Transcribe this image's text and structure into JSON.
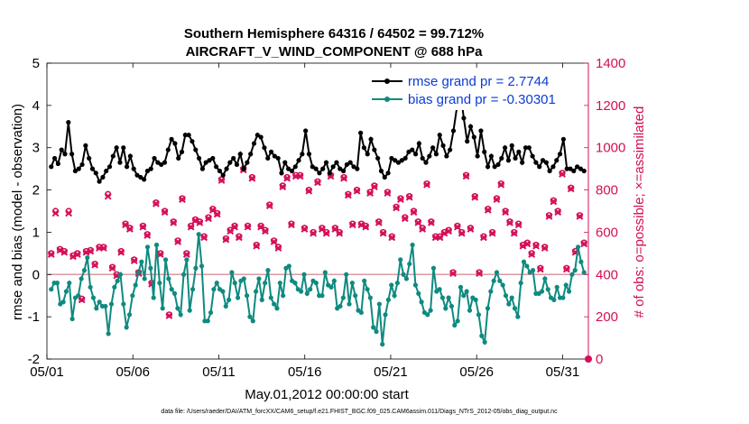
{
  "chart_data": {
    "type": "line",
    "title": "Southern Hemisphere 64316 / 64502 = 99.712%",
    "subtitle": "AIRCRAFT_V_WIND_COMPONENT @ 688 hPa",
    "xlabel": "May.01,2012 00:00:00 start",
    "ylabel_left": "rmse and bias (model - observation)",
    "ylabel_right": "# of obs: o=possible; ×=assimilated",
    "footer": "data file: /Users/raeder/DAI/ATM_forcXX/CAM6_setup/f.e21.FHIST_BGC.f09_025.CAM6assim.011/Diags_NTrS_2012-05/obs_diag_output.nc",
    "xlim": [
      0,
      31.5
    ],
    "ylim_left": [
      -2,
      5
    ],
    "ylim_right": [
      0,
      1400
    ],
    "x_ticks": [
      0,
      5,
      10,
      15,
      20,
      25,
      30
    ],
    "x_tick_labels": [
      "05/01",
      "05/06",
      "05/11",
      "05/16",
      "05/21",
      "05/26",
      "05/31"
    ],
    "y_ticks_left": [
      "-2",
      "-1",
      "0",
      "1",
      "2",
      "3",
      "4",
      "5"
    ],
    "y_ticks_right": [
      "0",
      "200",
      "400",
      "600",
      "800",
      "1000",
      "1200",
      "1400"
    ],
    "series": [
      {
        "name": "rmse grand pr = 2.7744",
        "axis": "left",
        "color": "#000000",
        "marker": "filled-circle",
        "values": [
          2.55,
          2.75,
          2.62,
          2.95,
          2.85,
          3.6,
          2.85,
          2.45,
          2.5,
          2.6,
          3.05,
          2.75,
          2.5,
          2.4,
          2.2,
          2.3,
          2.45,
          2.55,
          2.8,
          3.0,
          2.65,
          3.0,
          2.55,
          2.8,
          2.5,
          2.35,
          2.3,
          2.25,
          2.45,
          2.5,
          2.75,
          2.65,
          2.6,
          2.65,
          2.95,
          3.2,
          3.1,
          2.75,
          2.9,
          3.3,
          3.3,
          3.15,
          2.95,
          2.75,
          2.5,
          2.65,
          2.7,
          2.75,
          2.55,
          2.45,
          2.35,
          2.5,
          2.65,
          2.75,
          2.6,
          2.85,
          2.5,
          2.65,
          2.85,
          3.1,
          3.3,
          3.25,
          3.0,
          2.75,
          2.9,
          2.8,
          2.75,
          2.4,
          2.65,
          2.5,
          2.45,
          2.55,
          2.7,
          2.85,
          3.4,
          2.85,
          2.55,
          2.5,
          2.4,
          2.5,
          2.65,
          2.4,
          2.55,
          2.65,
          2.5,
          2.45,
          2.6,
          2.65,
          2.55,
          2.5,
          3.35,
          3.0,
          2.85,
          3.2,
          2.95,
          2.75,
          2.45,
          2.3,
          2.4,
          2.75,
          2.7,
          2.65,
          2.7,
          2.75,
          2.9,
          2.95,
          2.85,
          3.1,
          2.75,
          2.65,
          2.8,
          3.0,
          2.85,
          3.3,
          3.05,
          2.8,
          2.95,
          3.4,
          3.95,
          4.35,
          3.7,
          3.15,
          3.5,
          3.25,
          2.8,
          3.4,
          2.9,
          2.55,
          2.8,
          2.55,
          2.6,
          2.75,
          3.0,
          2.7,
          3.05,
          2.75,
          2.9,
          2.65,
          3.0,
          3.0,
          2.8,
          2.65,
          2.55,
          2.7,
          2.65,
          2.45,
          2.55,
          2.7,
          2.85,
          3.2,
          2.5,
          2.5,
          2.45,
          2.55,
          2.5,
          2.45
        ]
      },
      {
        "name": "bias grand pr = -0.30301",
        "axis": "left",
        "color": "#0f8a80",
        "marker": "filled-circle",
        "values": [
          -0.35,
          -0.2,
          -0.2,
          -0.7,
          -0.65,
          -0.4,
          -0.2,
          -1.05,
          -0.55,
          -0.5,
          -0.1,
          0.1,
          0.4,
          -0.3,
          -0.55,
          -0.8,
          -0.65,
          -0.75,
          -0.75,
          -1.4,
          -0.7,
          -0.3,
          -0.15,
          0.0,
          -0.7,
          -1.25,
          -0.95,
          -0.5,
          -0.25,
          0.05,
          0.3,
          -0.1,
          0.65,
          0.15,
          -0.55,
          0.7,
          -0.2,
          -0.8,
          0.35,
          -0.1,
          -0.35,
          -0.45,
          -0.8,
          -0.95,
          0.0,
          0.35,
          -0.85,
          -0.35,
          0.15,
          0.95,
          0.2,
          -1.1,
          -1.1,
          -0.9,
          -0.35,
          -0.2,
          -0.35,
          -0.4,
          -0.75,
          -0.6,
          0.05,
          -0.2,
          -0.55,
          -0.15,
          -0.1,
          -0.5,
          -1.0,
          -1.1,
          -0.4,
          -0.1,
          -0.6,
          -0.2,
          0.1,
          -0.55,
          -0.7,
          -0.8,
          -0.2,
          -0.5,
          0.15,
          0.2,
          -0.15,
          -0.2,
          -0.35,
          -0.4,
          0.0,
          -0.45,
          -0.35,
          -0.15,
          -0.2,
          -0.5,
          -0.5,
          0.05,
          -0.25,
          -0.3,
          -0.15,
          -0.8,
          -0.75,
          -0.55,
          0.0,
          -0.7,
          -0.2,
          -0.5,
          -0.85,
          -0.9,
          -0.15,
          -0.35,
          -0.55,
          -1.25,
          -1.35,
          -0.7,
          -1.65,
          -0.95,
          -0.6,
          -0.25,
          -0.5,
          -0.2,
          0.35,
          0.0,
          -0.1,
          0.25,
          0.7,
          -0.25,
          -0.45,
          -0.65,
          -0.9,
          -0.95,
          -0.85,
          0.15,
          -0.4,
          -0.35,
          -0.55,
          -0.8,
          -0.55,
          -0.75,
          -1.2,
          -1.1,
          -0.3,
          -0.5,
          -0.4,
          -0.85,
          -0.55,
          -0.6,
          -0.95,
          -1.45,
          -1.6,
          -0.8,
          -0.4,
          -0.15,
          0.05,
          -0.15,
          -0.25,
          -0.5,
          -0.7,
          -0.55,
          -0.8,
          -1.0,
          -0.2,
          0.3,
          0.2,
          0.05,
          0.1,
          -0.45,
          -0.45,
          -0.4,
          -0.1,
          -0.35,
          -0.55,
          -0.6,
          -0.3,
          -0.55,
          -0.55,
          -0.25,
          -0.4,
          0.0,
          0.1,
          0.65,
          0.3,
          0.05
        ]
      },
      {
        "name": "# of obs possible",
        "axis": "right",
        "color": "#d40f58",
        "marker": "open-circle",
        "values": [
          500,
          700,
          520,
          510,
          700,
          490,
          500,
          285,
          510,
          515,
          450,
          530,
          530,
          780,
          435,
          400,
          510,
          640,
          620,
          470,
          410,
          630,
          590,
          360,
          740,
          500,
          700,
          210,
          650,
          560,
          760,
          500,
          630,
          660,
          650,
          580,
          670,
          710,
          690,
          850,
          570,
          610,
          630,
          580,
          900,
          630,
          860,
          540,
          630,
          610,
          730,
          560,
          530,
          820,
          860,
          640,
          870,
          870,
          620,
          800,
          600,
          840,
          620,
          600,
          870,
          620,
          600,
          860,
          780,
          640,
          800,
          640,
          630,
          790,
          820,
          650,
          600,
          790,
          580,
          720,
          760,
          670,
          770,
          700,
          650,
          620,
          830,
          650,
          580,
          580,
          600,
          610,
          410,
          630,
          600,
          870,
          620,
          770,
          410,
          580,
          710,
          600,
          760,
          830,
          700,
          650,
          600,
          640,
          540,
          550,
          500,
          540,
          430,
          530,
          680,
          750,
          700,
          880,
          430,
          810,
          510,
          680,
          550
        ]
      },
      {
        "name": "# of obs assimilated",
        "axis": "right",
        "color": "#d40f58",
        "marker": "x",
        "values": [
          495,
          690,
          515,
          505,
          690,
          485,
          495,
          280,
          505,
          510,
          445,
          525,
          525,
          770,
          430,
          395,
          505,
          635,
          615,
          465,
          405,
          625,
          585,
          355,
          735,
          495,
          695,
          205,
          645,
          555,
          755,
          495,
          625,
          655,
          645,
          575,
          665,
          705,
          685,
          845,
          565,
          605,
          625,
          575,
          895,
          625,
          855,
          535,
          625,
          605,
          725,
          555,
          525,
          815,
          855,
          635,
          865,
          865,
          615,
          795,
          595,
          835,
          615,
          595,
          865,
          615,
          595,
          855,
          775,
          635,
          795,
          635,
          625,
          785,
          815,
          645,
          595,
          785,
          575,
          715,
          755,
          665,
          765,
          695,
          645,
          615,
          825,
          645,
          575,
          575,
          595,
          605,
          405,
          625,
          595,
          865,
          615,
          765,
          405,
          575,
          705,
          595,
          755,
          825,
          695,
          645,
          595,
          635,
          535,
          545,
          495,
          535,
          425,
          525,
          675,
          745,
          695,
          875,
          425,
          805,
          505,
          675,
          545
        ]
      }
    ],
    "legend": {
      "placement": "top-right",
      "entries": [
        "rmse grand pr = 2.7744",
        "bias grand pr = -0.30301"
      ]
    }
  },
  "colors": {
    "rmse": "#000000",
    "bias": "#0f8a80",
    "counts": "#d40f58",
    "right_axis": "#d40f58",
    "zero_line": "#d99aa0",
    "legend_text": "#0a3cd6"
  }
}
